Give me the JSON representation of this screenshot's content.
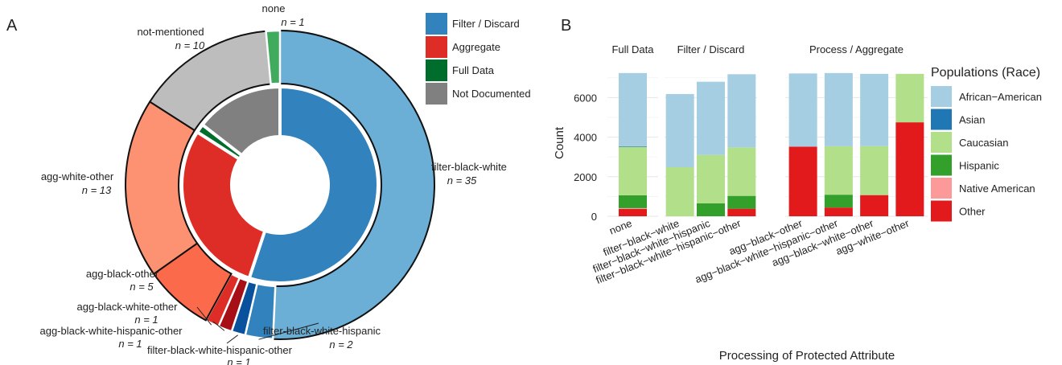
{
  "chart_data": [
    {
      "type": "pie",
      "panel_label": "A",
      "inner": [
        {
          "label": "Filter / Discard",
          "value": 38,
          "color": "#3182BD"
        },
        {
          "label": "Aggregate",
          "value": 20,
          "color": "#DE2D26"
        },
        {
          "label": "Full Data",
          "value": 1,
          "color": "#006D2C"
        },
        {
          "label": "Not Documented",
          "value": 10,
          "color": "#808080"
        }
      ],
      "outer": [
        {
          "label": "filter-black-white",
          "n_label": "n = 35",
          "value": 35,
          "group": "Filter / Discard",
          "color": "#6BAED6"
        },
        {
          "label": "filter-black-white-hispanic",
          "n_label": "n = 2",
          "value": 2,
          "group": "Filter / Discard",
          "color": "#3182BD"
        },
        {
          "label": "filter-black-white-hispanic-other",
          "n_label": "n = 1",
          "value": 1,
          "group": "Filter / Discard",
          "color": "#08519C"
        },
        {
          "label": "agg-black-white-hispanic-other",
          "n_label": "n = 1",
          "value": 1,
          "group": "Aggregate",
          "color": "#A50F15"
        },
        {
          "label": "agg-black-white-other",
          "n_label": "n = 1",
          "value": 1,
          "group": "Aggregate",
          "color": "#DE2D26"
        },
        {
          "label": "agg-black-other",
          "n_label": "n = 5",
          "value": 5,
          "group": "Aggregate",
          "color": "#FB6A4A"
        },
        {
          "label": "agg-white-other",
          "n_label": "n = 13",
          "value": 13,
          "group": "Aggregate",
          "color": "#FC9272"
        },
        {
          "label": "not-mentioned",
          "n_label": "n = 10",
          "value": 10,
          "group": "Not Documented",
          "color": "#BDBDBD"
        },
        {
          "label": "none",
          "n_label": "n = 1",
          "value": 1,
          "group": "Full Data",
          "color": "#41AB5D"
        }
      ],
      "legend": [
        {
          "label": "Filter / Discard",
          "color": "#3182BD"
        },
        {
          "label": "Aggregate",
          "color": "#DE2D26"
        },
        {
          "label": "Full Data",
          "color": "#006D2C"
        },
        {
          "label": "Not Documented",
          "color": "#808080"
        }
      ]
    },
    {
      "type": "bar",
      "stacked": true,
      "panel_label": "B",
      "xlabel": "Processing of Protected Attribute",
      "ylabel": "Count",
      "ylim": [
        0,
        7600
      ],
      "yticks": [
        0,
        2000,
        4000,
        6000
      ],
      "grid": true,
      "facets": [
        {
          "title": "Full Data",
          "categories": [
            "none"
          ]
        },
        {
          "title": "Filter / Discard",
          "categories": [
            "filter−black−white",
            "filter−black−white−hispanic",
            "filter−black−white−hispanic−other"
          ]
        },
        {
          "title": "Process / Aggregate",
          "categories": [
            "agg−black−other",
            "agg−black−white−hispanic−other",
            "agg−black−white−other",
            "agg−white−other"
          ]
        }
      ],
      "legend_title": "Populations (Race)",
      "series": [
        {
          "name": "African−American",
          "color": "#A6CEE3",
          "values": [
            3700,
            3700,
            3700,
            3700,
            3700,
            3700,
            3650,
            0
          ]
        },
        {
          "name": "Asian",
          "color": "#1F78B4",
          "values": [
            30,
            0,
            0,
            0,
            0,
            0,
            0,
            0
          ]
        },
        {
          "name": "Caucasian",
          "color": "#B2DF8A",
          "values": [
            2450,
            2480,
            2450,
            2450,
            0,
            2450,
            2480,
            2450
          ]
        },
        {
          "name": "Hispanic",
          "color": "#33A02C",
          "values": [
            650,
            0,
            650,
            650,
            0,
            650,
            0,
            0
          ]
        },
        {
          "name": "Native American",
          "color": "#FB9A99",
          "values": [
            40,
            0,
            0,
            0,
            0,
            0,
            0,
            0
          ]
        },
        {
          "name": "Other",
          "color": "#E31A1C",
          "values": [
            370,
            0,
            0,
            380,
            3520,
            440,
            1070,
            4750
          ]
        }
      ]
    }
  ]
}
